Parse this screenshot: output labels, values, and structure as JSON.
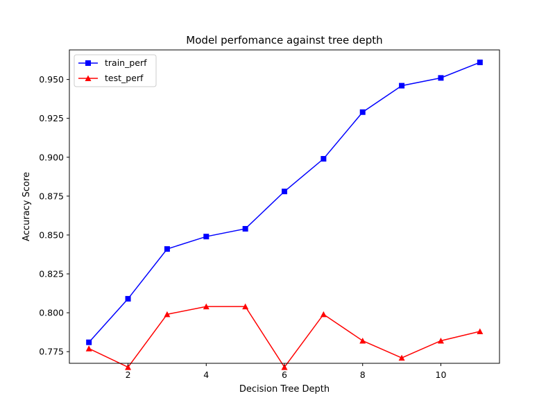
{
  "chart_data": {
    "type": "line",
    "title": "Model perfomance against tree depth",
    "xlabel": "Decision Tree Depth",
    "ylabel": "Accuracy Score",
    "x": [
      1,
      2,
      3,
      4,
      5,
      6,
      7,
      8,
      9,
      10,
      11
    ],
    "xlim": [
      0.5,
      11.5
    ],
    "ylim": [
      0.7675,
      0.969
    ],
    "xticks": [
      2,
      4,
      6,
      8,
      10
    ],
    "xtick_labels": [
      "2",
      "4",
      "6",
      "8",
      "10"
    ],
    "yticks": [
      0.775,
      0.8,
      0.825,
      0.85,
      0.875,
      0.9,
      0.925,
      0.95
    ],
    "ytick_labels": [
      "0.775",
      "0.800",
      "0.825",
      "0.850",
      "0.875",
      "0.900",
      "0.925",
      "0.950"
    ],
    "grid": false,
    "legend_position": "top-left",
    "series": [
      {
        "name": "train_perf",
        "color": "#0000ff",
        "marker": "square",
        "values": [
          0.781,
          0.809,
          0.841,
          0.849,
          0.854,
          0.878,
          0.899,
          0.929,
          0.946,
          0.951,
          0.961
        ]
      },
      {
        "name": "test_perf",
        "color": "#ff0000",
        "marker": "triangle",
        "values": [
          0.777,
          0.765,
          0.799,
          0.804,
          0.804,
          0.765,
          0.799,
          0.782,
          0.771,
          0.782,
          0.788
        ]
      }
    ]
  }
}
